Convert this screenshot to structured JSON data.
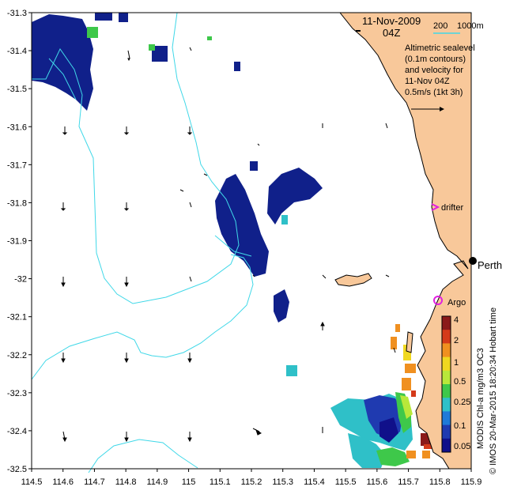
{
  "title": {
    "date": "11-Nov-2009",
    "time": "04Z"
  },
  "scalebar": {
    "label_a": "200",
    "label_b": "1000m"
  },
  "legend_lines": [
    "Altimetric sealevel",
    "(0.1m contours)",
    "and velocity for",
    "11-Nov 04Z",
    "0.5m/s (1kt 3h)"
  ],
  "places": {
    "perth": "Perth",
    "argo": "Argo",
    "drifter": "drifter"
  },
  "colorbar": {
    "labels": [
      "4",
      "2",
      "1",
      "0.5",
      "0.25",
      "0.1",
      "0.05"
    ],
    "colors": [
      "#8b1a1a",
      "#d43a1a",
      "#f09020",
      "#f0d820",
      "#b8e83a",
      "#3ec84a",
      "#2fc0c8",
      "#1f7ad8",
      "#1f3ab0",
      "#10108a"
    ]
  },
  "credits": {
    "product": "MODIS Chl-a mg/m3 OC3",
    "stamp": "© IMOS 20-Mar-2015 18:20:34 Hobart time"
  },
  "axes": {
    "x_ticks": [
      "114.5",
      "114.6",
      "114.7",
      "114.8",
      "114.9",
      "115",
      "115.1",
      "115.2",
      "115.3",
      "115.4",
      "115.5",
      "115.6",
      "115.7",
      "115.8",
      "115.9"
    ],
    "y_ticks": [
      "-31.3",
      "-31.4",
      "-31.5",
      "-31.6",
      "-31.7",
      "-31.8",
      "-31.9",
      "-32",
      "-32.1",
      "-32.2",
      "-32.3",
      "-32.4",
      "-32.5"
    ],
    "xlim": [
      114.5,
      115.9
    ],
    "ylim": [
      -32.5,
      -31.3
    ]
  },
  "colors": {
    "land": "#f8c89a",
    "isobath": "#40d8e8",
    "arrow": "#000000",
    "argo": "#e020e0",
    "drifter": "#e020e0"
  }
}
